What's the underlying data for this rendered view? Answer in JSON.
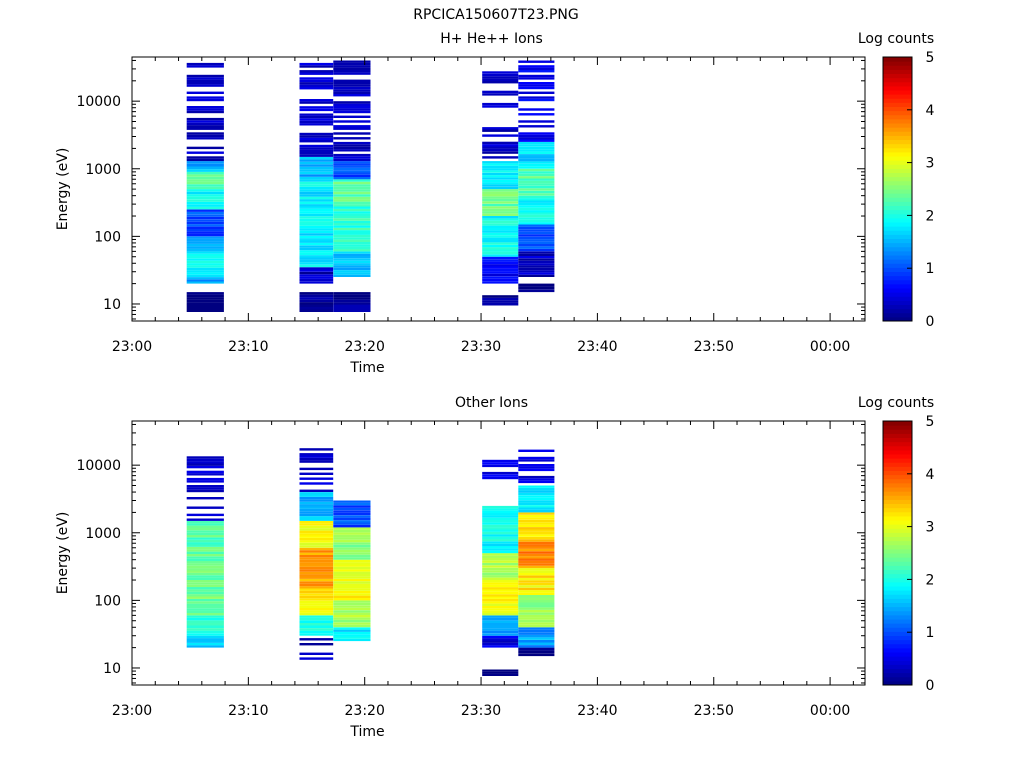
{
  "figure_title": "RPCICA150607T23.PNG",
  "chart_data": [
    {
      "type": "heatmap",
      "title": "H+ He++ Ions",
      "xlabel": "Time",
      "ylabel": "Energy (eV)",
      "xticks": [
        "23:00",
        "23:10",
        "23:20",
        "23:30",
        "23:40",
        "23:50",
        "00:00"
      ],
      "xlim": [
        "23:00",
        "00:03"
      ],
      "yscale": "log",
      "ylim": [
        5.6,
        45000
      ],
      "yticks": [
        "10",
        "100",
        "1000",
        "10000"
      ],
      "colorbar": {
        "label": "Log counts",
        "range": [
          0,
          5
        ],
        "ticks": [
          "0",
          "1",
          "2",
          "3",
          "4",
          "5"
        ]
      },
      "columns": [
        {
          "t0": "23:04.7",
          "t1": "23:07.9",
          "emin": 20,
          "emax": 40000,
          "bands": [
            [
              7.6,
              15,
              0.05
            ],
            [
              20,
              25,
              1.4
            ],
            [
              25,
              60,
              1.9
            ],
            [
              60,
              100,
              1.6
            ],
            [
              100,
              250,
              1.0
            ],
            [
              250,
              500,
              1.9
            ],
            [
              500,
              900,
              2.3
            ],
            [
              900,
              1300,
              1.5
            ],
            [
              1300,
              40000,
              0.15
            ]
          ]
        },
        {
          "t0": "23:14.4",
          "t1": "23:17.3",
          "emin": 20,
          "emax": 40000,
          "bands": [
            [
              7.6,
              15,
              0.05
            ],
            [
              20,
              35,
              0.3
            ],
            [
              35,
              300,
              1.8
            ],
            [
              300,
              700,
              1.8
            ],
            [
              700,
              1500,
              1.5
            ],
            [
              1500,
              40000,
              0.2
            ]
          ]
        },
        {
          "t0": "23:17.3",
          "t1": "23:20.5",
          "emin": 25,
          "emax": 40000,
          "bands": [
            [
              7.6,
              15,
              0.05
            ],
            [
              25,
              60,
              1.6
            ],
            [
              60,
              300,
              2.1
            ],
            [
              300,
              700,
              2.3
            ],
            [
              700,
              1300,
              1.0
            ],
            [
              1300,
              40000,
              0.15
            ]
          ]
        },
        {
          "t0": "23:30.1",
          "t1": "23:33.2",
          "emin": 20,
          "emax": 30000,
          "bands": [
            [
              9.5,
              13.5,
              0.05
            ],
            [
              20,
              50,
              0.6
            ],
            [
              50,
              200,
              1.9
            ],
            [
              200,
              500,
              2.4
            ],
            [
              500,
              1300,
              1.8
            ],
            [
              1300,
              30000,
              0.15
            ]
          ]
        },
        {
          "t0": "23:33.2",
          "t1": "23:36.3",
          "emin": 25,
          "emax": 40000,
          "bands": [
            [
              15,
              20,
              0.05
            ],
            [
              25,
              60,
              0.3
            ],
            [
              60,
              150,
              1.0
            ],
            [
              150,
              400,
              1.9
            ],
            [
              400,
              1000,
              2.3
            ],
            [
              1000,
              2500,
              1.7
            ],
            [
              2500,
              40000,
              0.4
            ]
          ]
        }
      ]
    },
    {
      "type": "heatmap",
      "title": "Other Ions",
      "xlabel": "Time",
      "ylabel": "Energy (eV)",
      "xticks": [
        "23:00",
        "23:10",
        "23:20",
        "23:30",
        "23:40",
        "23:50",
        "00:00"
      ],
      "xlim": [
        "23:00",
        "00:03"
      ],
      "yscale": "log",
      "ylim": [
        5.6,
        45000
      ],
      "yticks": [
        "10",
        "100",
        "1000",
        "10000"
      ],
      "colorbar": {
        "label": "Log counts",
        "range": [
          0,
          5
        ],
        "ticks": [
          "0",
          "1",
          "2",
          "3",
          "4",
          "5"
        ]
      },
      "columns": [
        {
          "t0": "23:04.7",
          "t1": "23:07.9",
          "emin": 20,
          "emax": 13500,
          "bands": [
            [
              20,
              30,
              1.6
            ],
            [
              30,
              60,
              2.0
            ],
            [
              60,
              300,
              2.4
            ],
            [
              300,
              1500,
              2.3
            ],
            [
              1500,
              13500,
              0.2
            ]
          ]
        },
        {
          "t0": "23:14.4",
          "t1": "23:17.3",
          "emin": 9.5,
          "emax": 21000,
          "bands": [
            [
              9.5,
              30,
              0.1
            ],
            [
              30,
              60,
              1.9
            ],
            [
              60,
              150,
              3.2
            ],
            [
              150,
              600,
              3.6
            ],
            [
              600,
              1500,
              3.1
            ],
            [
              1500,
              4000,
              1.5
            ],
            [
              4000,
              21000,
              0.2
            ]
          ]
        },
        {
          "t0": "23:17.3",
          "t1": "23:20.5",
          "emin": 25,
          "emax": 3000,
          "bands": [
            [
              25,
              40,
              1.8
            ],
            [
              40,
              100,
              2.7
            ],
            [
              100,
              400,
              3.1
            ],
            [
              400,
              1200,
              2.6
            ],
            [
              1200,
              3000,
              1.0
            ]
          ]
        },
        {
          "t0": "23:30.1",
          "t1": "23:33.2",
          "emin": 7.6,
          "emax": 12000,
          "bands": [
            [
              7.6,
              9.5,
              0.05
            ],
            [
              20,
              30,
              0.5
            ],
            [
              30,
              60,
              1.4
            ],
            [
              60,
              200,
              3.1
            ],
            [
              200,
              500,
              2.7
            ],
            [
              500,
              2500,
              1.9
            ],
            [
              2500,
              12000,
              0.3
            ]
          ]
        },
        {
          "t0": "23:33.2",
          "t1": "23:36.3",
          "emin": 15,
          "emax": 17000,
          "bands": [
            [
              15,
              20,
              0.1
            ],
            [
              20,
              40,
              1.4
            ],
            [
              40,
              120,
              2.6
            ],
            [
              120,
              300,
              3.2
            ],
            [
              300,
              800,
              3.7
            ],
            [
              800,
              2000,
              3.2
            ],
            [
              2000,
              5000,
              1.8
            ],
            [
              5000,
              17000,
              0.3
            ]
          ]
        }
      ]
    }
  ]
}
